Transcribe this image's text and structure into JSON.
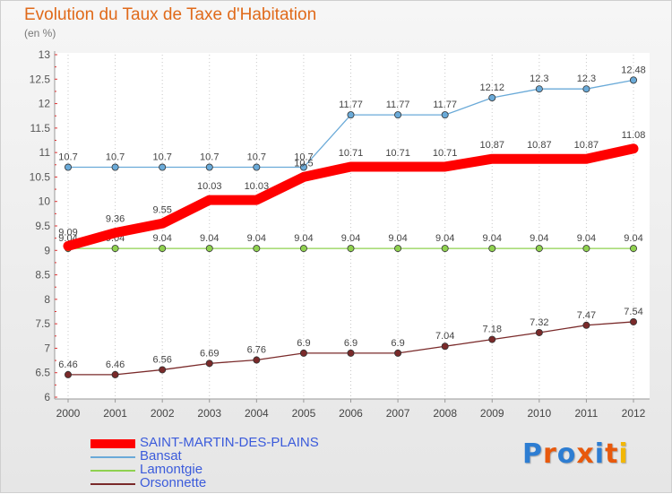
{
  "header": {
    "title": "Evolution du Taux de Taxe d'Habitation",
    "subtitle": "(en %)"
  },
  "chart_data": {
    "type": "line",
    "title": "Evolution du Taux de Taxe d'Habitation",
    "ylabel": "(en %)",
    "xlabel": "",
    "ylim": [
      6,
      13
    ],
    "yticks": [
      6,
      6.5,
      7,
      7.5,
      8,
      8.5,
      9,
      9.5,
      10,
      10.5,
      11,
      11.5,
      12,
      12.5,
      13
    ],
    "x": [
      "2000",
      "2001",
      "2002",
      "2003",
      "2004",
      "2005",
      "2006",
      "2007",
      "2008",
      "2009",
      "2010",
      "2011",
      "2012"
    ],
    "grid": "vertical dotted",
    "series": [
      {
        "name": "SAINT-MARTIN-DES-PLAINS",
        "color": "#ff0000",
        "values": [
          9.09,
          9.36,
          9.55,
          10.03,
          10.03,
          10.5,
          10.71,
          10.71,
          10.71,
          10.87,
          10.87,
          10.87,
          11.08
        ],
        "labels": [
          "9.09",
          "9.36",
          "9.55",
          "10.03",
          "10.03",
          "10.5",
          "10.71",
          "10.71",
          "10.71",
          "10.87",
          "10.87",
          "10.87",
          "11.08"
        ]
      },
      {
        "name": "Bansat",
        "color": "#6aaad8",
        "values": [
          10.7,
          10.7,
          10.7,
          10.7,
          10.7,
          10.7,
          11.77,
          11.77,
          11.77,
          12.12,
          12.3,
          12.3,
          12.48
        ],
        "labels": [
          "10.7",
          "10.7",
          "10.7",
          "10.7",
          "10.7",
          "10.7",
          "11.77",
          "11.77",
          "11.77",
          "12.12",
          "12.3",
          "12.3",
          "12.48"
        ]
      },
      {
        "name": "Lamontgie",
        "color": "#8fd14f",
        "values": [
          9.04,
          9.04,
          9.04,
          9.04,
          9.04,
          9.04,
          9.04,
          9.04,
          9.04,
          9.04,
          9.04,
          9.04,
          9.04
        ],
        "labels": [
          "9.04",
          "9.04",
          "9.04",
          "9.04",
          "9.04",
          "9.04",
          "9.04",
          "9.04",
          "9.04",
          "9.04",
          "9.04",
          "9.04",
          "9.04"
        ]
      },
      {
        "name": "Orsonnette",
        "color": "#7a2a2a",
        "values": [
          6.46,
          6.46,
          6.56,
          6.69,
          6.76,
          6.9,
          6.9,
          6.9,
          7.04,
          7.18,
          7.32,
          7.47,
          7.54
        ],
        "labels": [
          "6.46",
          "6.46",
          "6.56",
          "6.69",
          "6.76",
          "6.9",
          "6.9",
          "6.9",
          "7.04",
          "7.18",
          "7.32",
          "7.47",
          "7.54"
        ]
      }
    ],
    "legend_position": "bottom-left"
  },
  "logo": {
    "text": "Proxiti",
    "letter_colors": [
      "#2d7dd2",
      "#e8590c",
      "#2d7dd2",
      "#e8590c",
      "#2d7dd2",
      "#e8590c",
      "#f2b705"
    ]
  }
}
